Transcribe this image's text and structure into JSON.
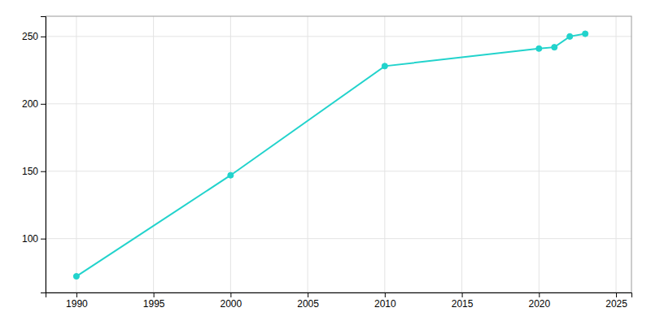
{
  "chart_data": {
    "type": "line",
    "x": [
      1990,
      2000,
      2010,
      2020,
      2021,
      2022,
      2023
    ],
    "values": [
      72,
      147,
      228,
      241,
      242,
      250,
      252
    ],
    "color": "#22d3cc",
    "marker": "circle",
    "xlim": [
      1988,
      2026
    ],
    "ylim": [
      60,
      265
    ],
    "xticks": [
      1990,
      1995,
      2000,
      2005,
      2010,
      2015,
      2020,
      2025
    ],
    "yticks": [
      100,
      150,
      200,
      250
    ],
    "grid": true
  }
}
